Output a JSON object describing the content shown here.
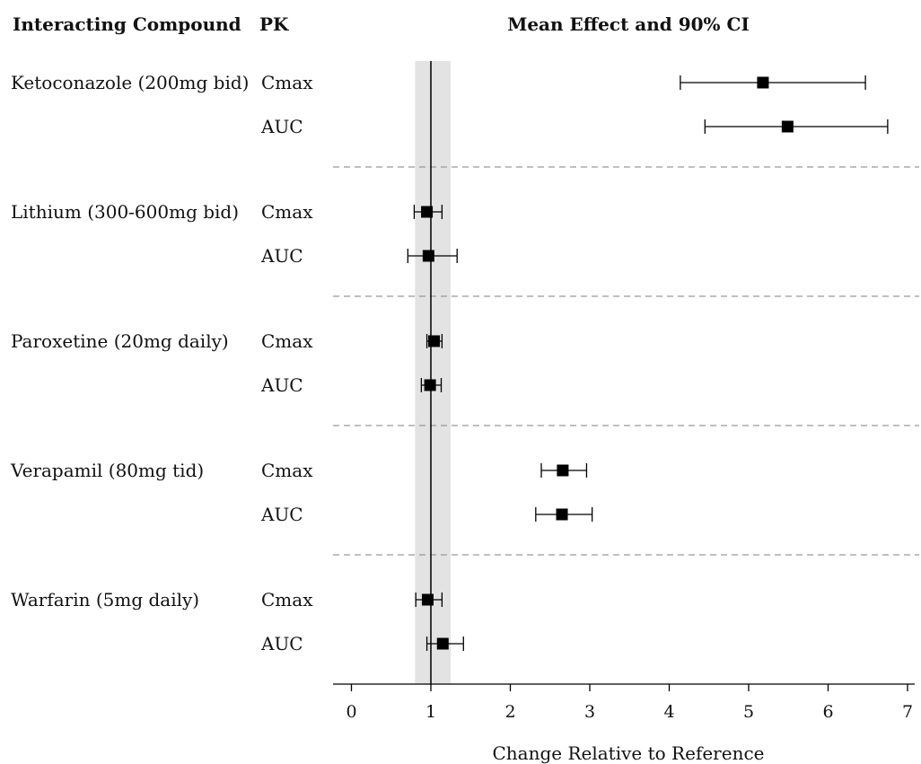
{
  "headers": {
    "compound": "Interacting Compound",
    "pk": "PK",
    "effect": "Mean Effect and 90% CI"
  },
  "chart_data": {
    "type": "forest",
    "xlabel": "Change Relative to Reference",
    "xlim": [
      -0.2,
      7.15
    ],
    "xticks": [
      0,
      1,
      2,
      3,
      4,
      5,
      6,
      7
    ],
    "reference_line": 1,
    "reference_band": [
      0.8,
      1.25
    ],
    "groups": [
      {
        "compound": "Ketoconazole (200mg bid)",
        "rows": [
          {
            "pk": "Cmax",
            "mean": 5.18,
            "lower": 4.14,
            "upper": 6.47
          },
          {
            "pk": "AUC",
            "mean": 5.49,
            "lower": 4.45,
            "upper": 6.75
          }
        ]
      },
      {
        "compound": "Lithium (300-600mg bid)",
        "rows": [
          {
            "pk": "Cmax",
            "mean": 0.95,
            "lower": 0.79,
            "upper": 1.14
          },
          {
            "pk": "AUC",
            "mean": 0.97,
            "lower": 0.71,
            "upper": 1.33
          }
        ]
      },
      {
        "compound": "Paroxetine (20mg daily)",
        "rows": [
          {
            "pk": "Cmax",
            "mean": 1.04,
            "lower": 0.95,
            "upper": 1.14
          },
          {
            "pk": "AUC",
            "mean": 0.99,
            "lower": 0.88,
            "upper": 1.13
          }
        ]
      },
      {
        "compound": "Verapamil (80mg tid)",
        "rows": [
          {
            "pk": "Cmax",
            "mean": 2.66,
            "lower": 2.39,
            "upper": 2.96
          },
          {
            "pk": "AUC",
            "mean": 2.65,
            "lower": 2.32,
            "upper": 3.03
          }
        ]
      },
      {
        "compound": "Warfarin (5mg daily)",
        "rows": [
          {
            "pk": "Cmax",
            "mean": 0.96,
            "lower": 0.81,
            "upper": 1.14
          },
          {
            "pk": "AUC",
            "mean": 1.15,
            "lower": 0.95,
            "upper": 1.41
          }
        ]
      }
    ]
  }
}
